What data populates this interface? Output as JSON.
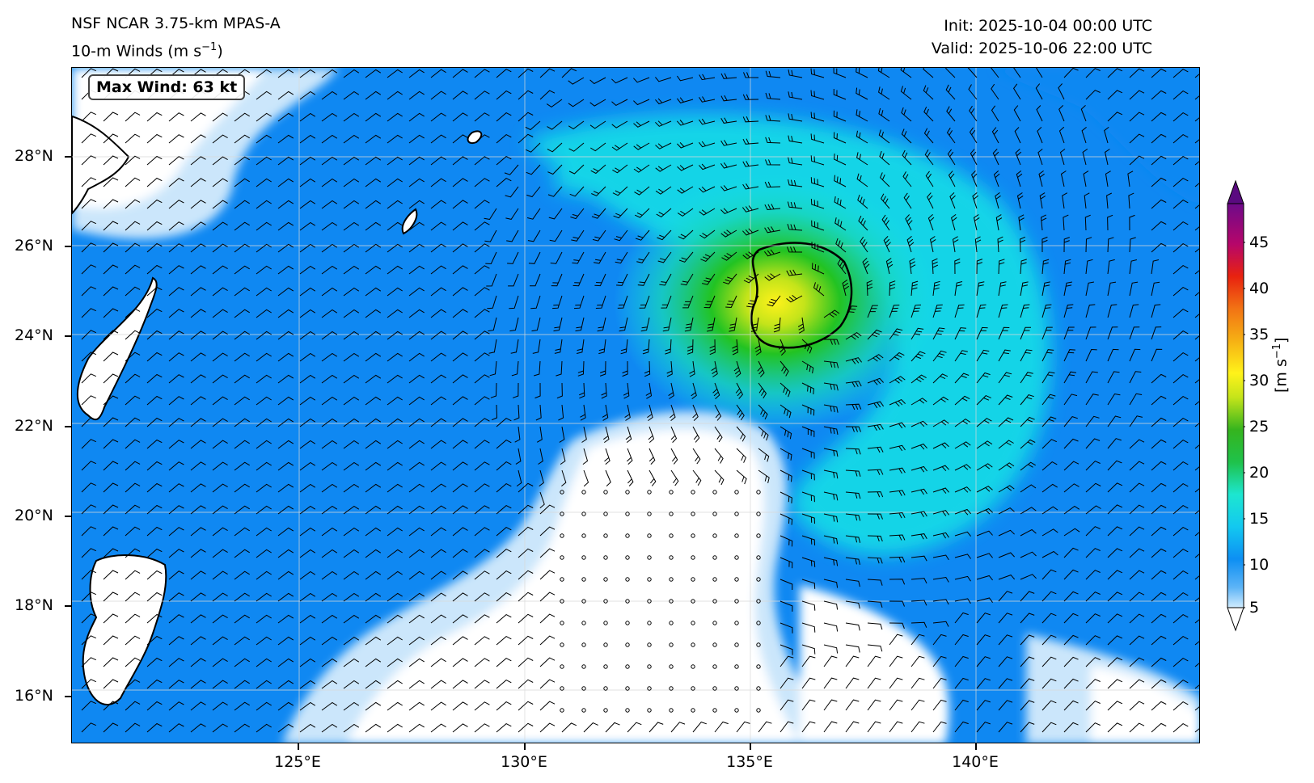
{
  "title": {
    "model": "NSF NCAR 3.75-km MPAS-A",
    "field": "10-m Winds (m s",
    "field_sup": "−1",
    "field_close": ")",
    "init": "Init: 2025-10-04 00:00 UTC",
    "valid": "Valid: 2025-10-06 22:00 UTC"
  },
  "annotation": {
    "max_wind": "Max Wind: 63 kt"
  },
  "map": {
    "lon_range": [
      119.9,
      144.9
    ],
    "lat_range": [
      15.0,
      30.0
    ],
    "lat_ticks": [
      "28°N",
      "26°N",
      "24°N",
      "22°N",
      "20°N",
      "18°N",
      "16°N"
    ],
    "lon_ticks": [
      "125°E",
      "130°E",
      "135°E",
      "140°E"
    ],
    "storm_center": {
      "lon": 136.4,
      "lat": 24.6
    },
    "colors": {
      "calm": "#ffffff",
      "light": "#cbe6fb",
      "mid": "#0f88f2",
      "cyan": "#18e2e6",
      "green": "#22c322",
      "yellow": "#f2ea1a"
    }
  },
  "colorbar": {
    "ticks": [
      "45",
      "40",
      "35",
      "30",
      "25",
      "20",
      "15",
      "10",
      "5"
    ],
    "unit": "[m s",
    "unit_sup": "−1",
    "unit_close": "]",
    "range": [
      5,
      48
    ],
    "colors": [
      "#d0ecfe",
      "#0d8ff3",
      "#13c8f0",
      "#1de6d0",
      "#1fc24b",
      "#35b41e",
      "#c4e41a",
      "#fff21a",
      "#f6b114",
      "#f27314",
      "#e8220f",
      "#b6066a",
      "#6e0a8a"
    ]
  }
}
